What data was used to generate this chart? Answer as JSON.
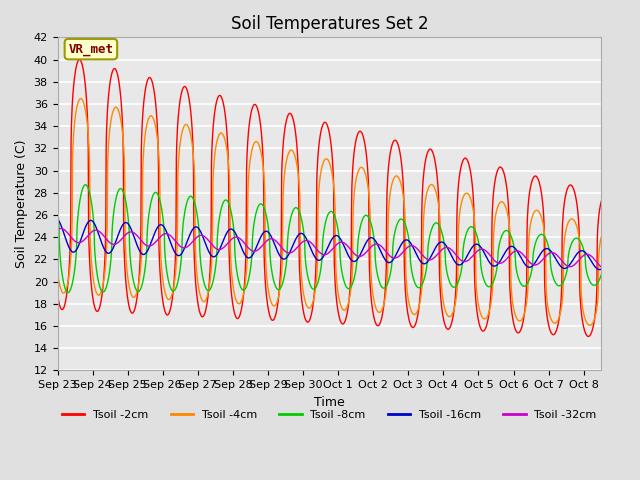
{
  "title": "Soil Temperatures Set 2",
  "xlabel": "Time",
  "ylabel": "Soil Temperature (C)",
  "ylim": [
    12,
    42
  ],
  "yticks": [
    12,
    14,
    16,
    18,
    20,
    22,
    24,
    26,
    28,
    30,
    32,
    34,
    36,
    38,
    40,
    42
  ],
  "background_color": "#e0e0e0",
  "plot_bg_color": "#e8e8e8",
  "grid_color": "#ffffff",
  "annotation_text": "VR_met",
  "annotation_bg": "#ffffcc",
  "annotation_border": "#999900",
  "annotation_text_color": "#800000",
  "colors": {
    "Tsoil -2cm": "#ff0000",
    "Tsoil -4cm": "#ff8800",
    "Tsoil -8cm": "#00cc00",
    "Tsoil -16cm": "#0000cc",
    "Tsoil -32cm": "#cc00cc"
  },
  "legend_labels": [
    "Tsoil -2cm",
    "Tsoil -4cm",
    "Tsoil -8cm",
    "Tsoil -16cm",
    "Tsoil -32cm"
  ],
  "num_days": 15.5,
  "points_per_day": 96,
  "x_tick_labels": [
    "Sep 23",
    "Sep 24",
    "Sep 25",
    "Sep 26",
    "Sep 27",
    "Sep 28",
    "Sep 29",
    "Sep 30",
    "Oct 1",
    "Oct 2",
    "Oct 3",
    "Oct 4",
    "Oct 5",
    "Oct 6",
    "Oct 7",
    "Oct 8"
  ],
  "title_fontsize": 12,
  "axis_fontsize": 9,
  "tick_fontsize": 8
}
